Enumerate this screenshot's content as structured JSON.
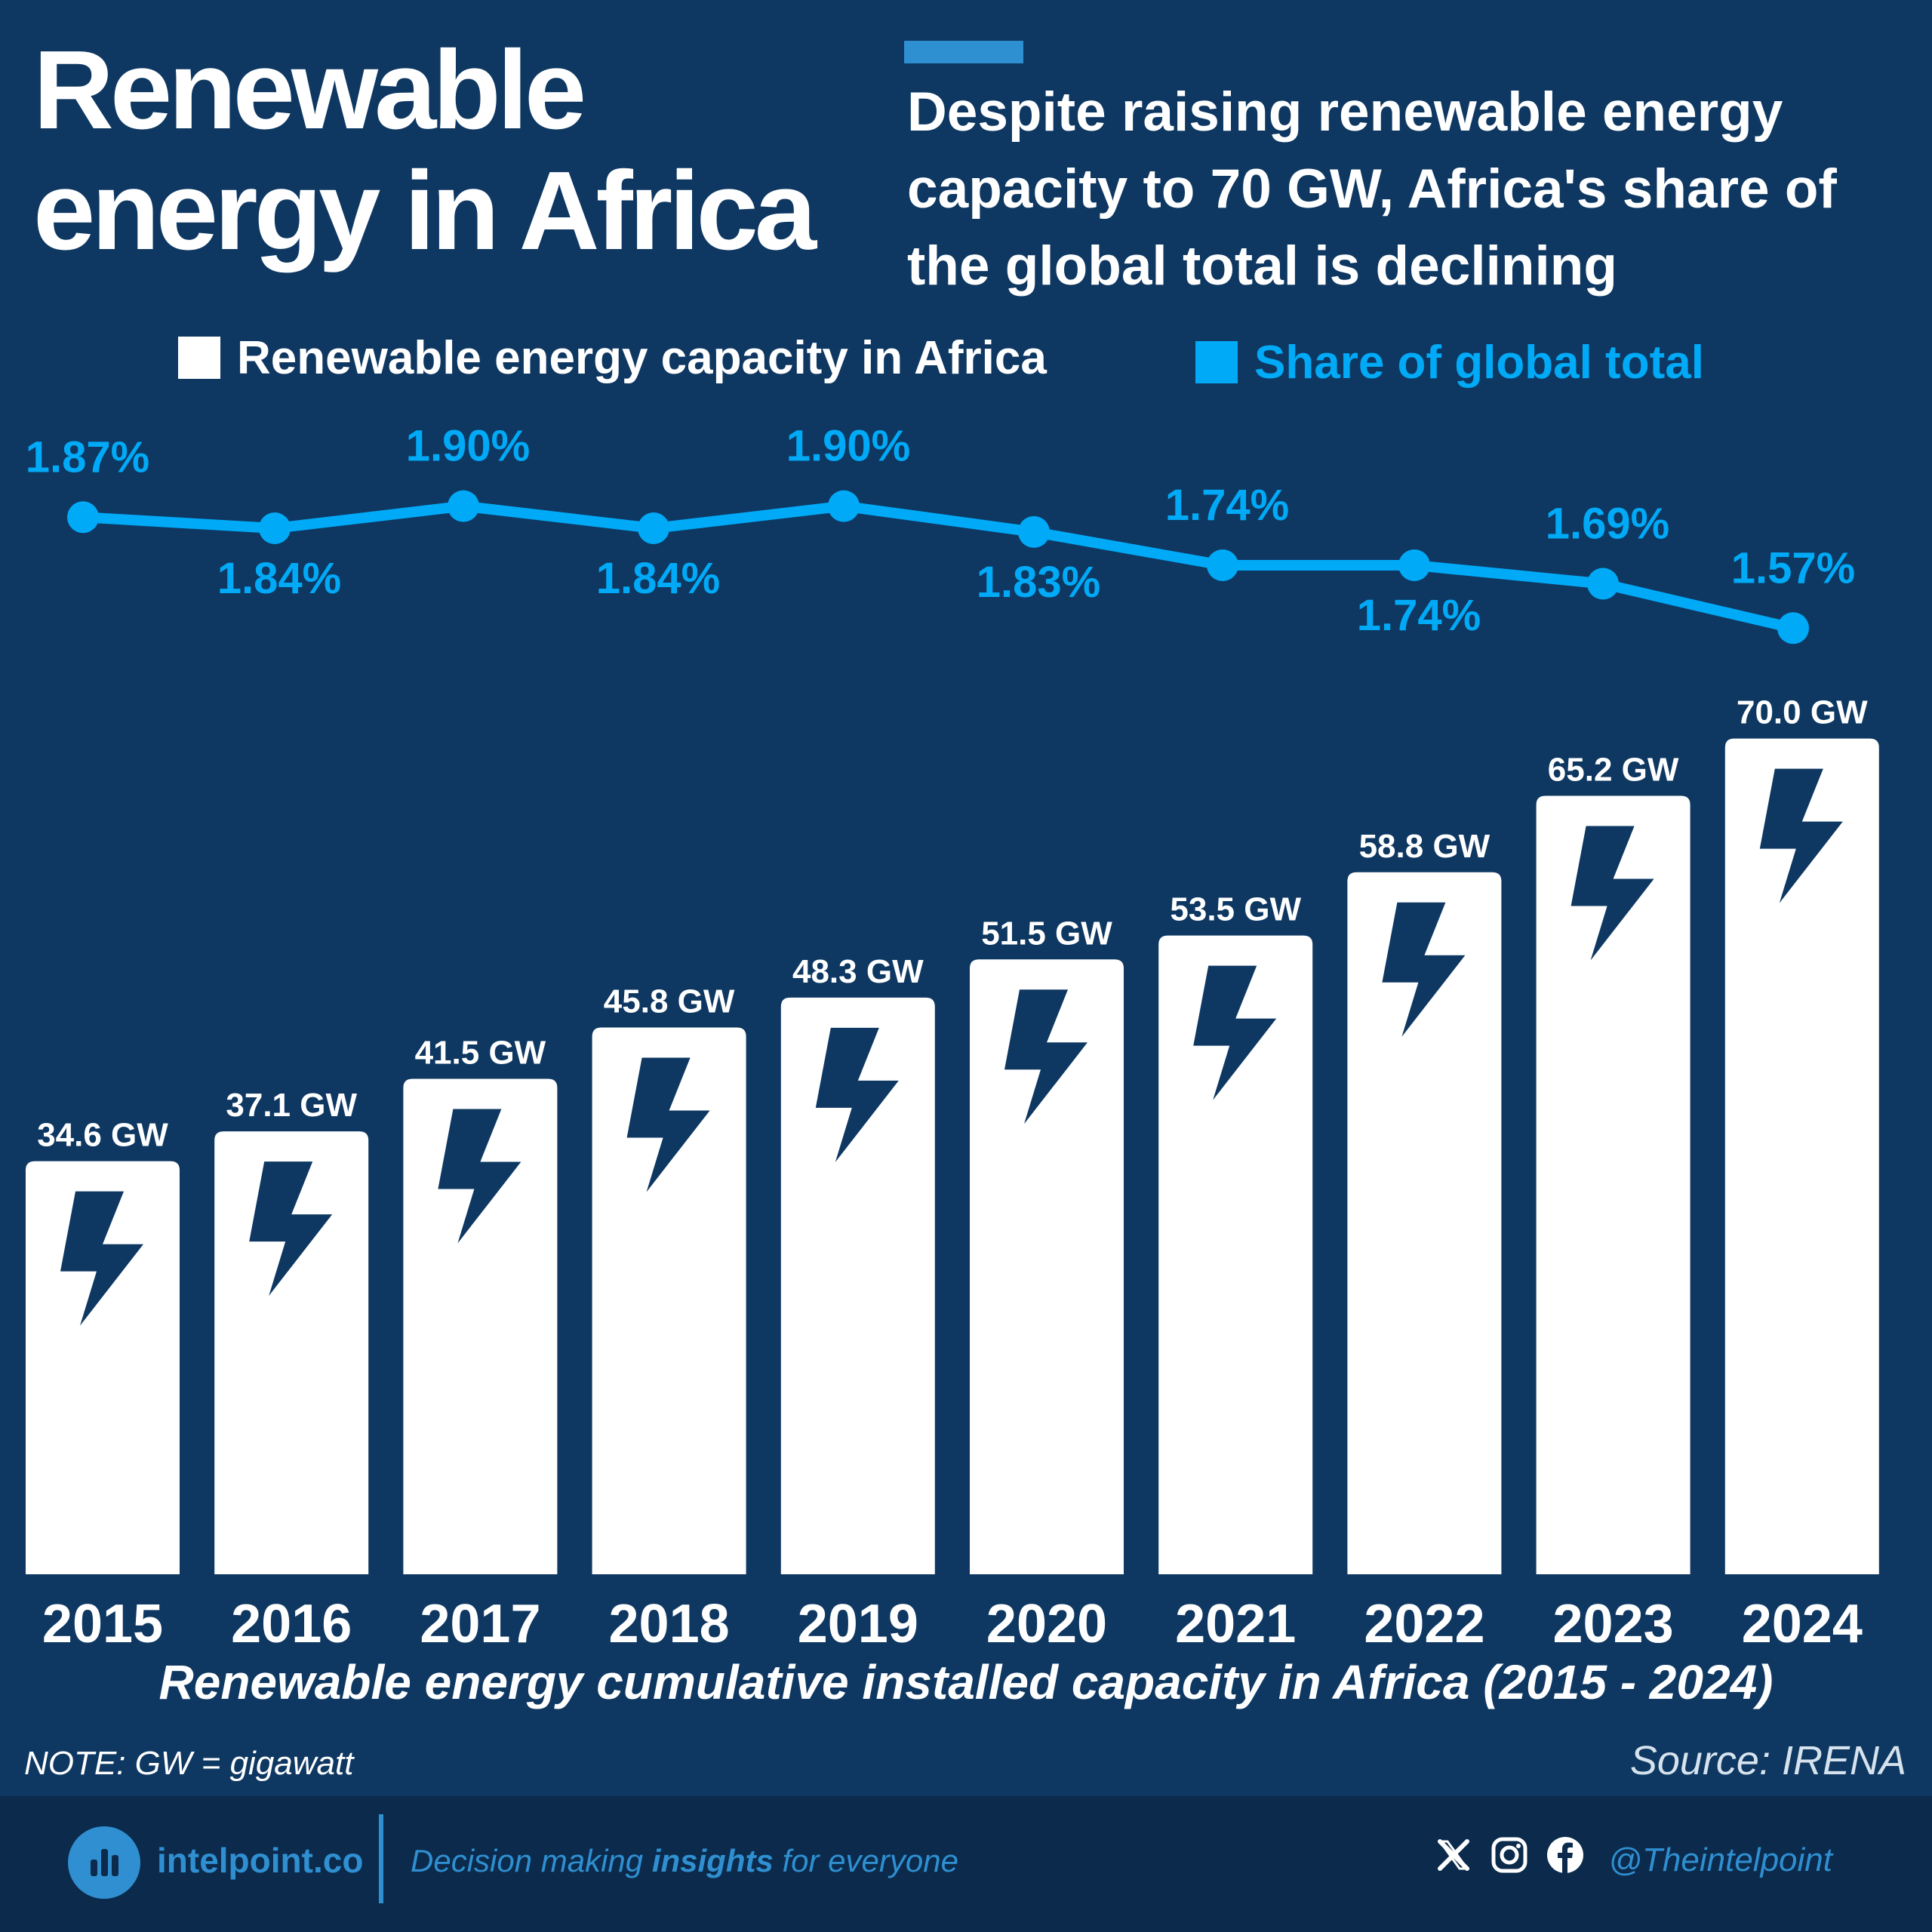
{
  "title": {
    "line1": "Renewable",
    "line2": "energy in Africa"
  },
  "subtitle": "Despite raising renewable energy capacity to 70 GW, Africa's share of the global total is declining",
  "legend": {
    "capacity": "Renewable energy capacity in Africa",
    "share": "Share of global total"
  },
  "colors": {
    "background": "#0e3862",
    "bar": "#ffffff",
    "line": "#00aaf7",
    "icon": "#0e3862",
    "footer": "#0b2a4c",
    "accent": "#2f8fd0"
  },
  "chart_data": {
    "type": "bar",
    "title": "Renewable energy cumulative installed capacity in Africa (2015 - 2024)",
    "categories": [
      "2015",
      "2016",
      "2017",
      "2018",
      "2019",
      "2020",
      "2021",
      "2022",
      "2023",
      "2024"
    ],
    "series": [
      {
        "name": "Renewable energy capacity in Africa",
        "type": "bar",
        "values": [
          34.6,
          37.1,
          41.5,
          45.8,
          48.3,
          51.5,
          53.5,
          58.8,
          65.2,
          70.0
        ],
        "labels": [
          "34.6 GW",
          "37.1 GW",
          "41.5 GW",
          "45.8 GW",
          "48.3 GW",
          "51.5 GW",
          "53.5 GW",
          "58.8 GW",
          "65.2 GW",
          "70.0 GW"
        ]
      },
      {
        "name": "Share of global total",
        "type": "line",
        "values": [
          1.87,
          1.84,
          1.9,
          1.84,
          1.9,
          1.83,
          1.74,
          1.74,
          1.69,
          1.57
        ],
        "labels": [
          "1.87%",
          "1.84%",
          "1.90%",
          "1.84%",
          "1.90%",
          "1.83%",
          "1.74%",
          "1.74%",
          "1.69%",
          "1.57%"
        ]
      }
    ],
    "bar_icon": "lightning-bolt-icon",
    "grid": false,
    "legend": "top"
  },
  "note": "NOTE: GW = gigawatt",
  "source": "Source: IRENA",
  "footer": {
    "brand": "intelpoint.co",
    "tagline_pre": "Decision making ",
    "tagline_bold": "insights",
    "tagline_post": " for everyone",
    "handle": "@Theintelpoint",
    "icons": [
      "x-icon",
      "instagram-icon",
      "facebook-icon"
    ]
  }
}
